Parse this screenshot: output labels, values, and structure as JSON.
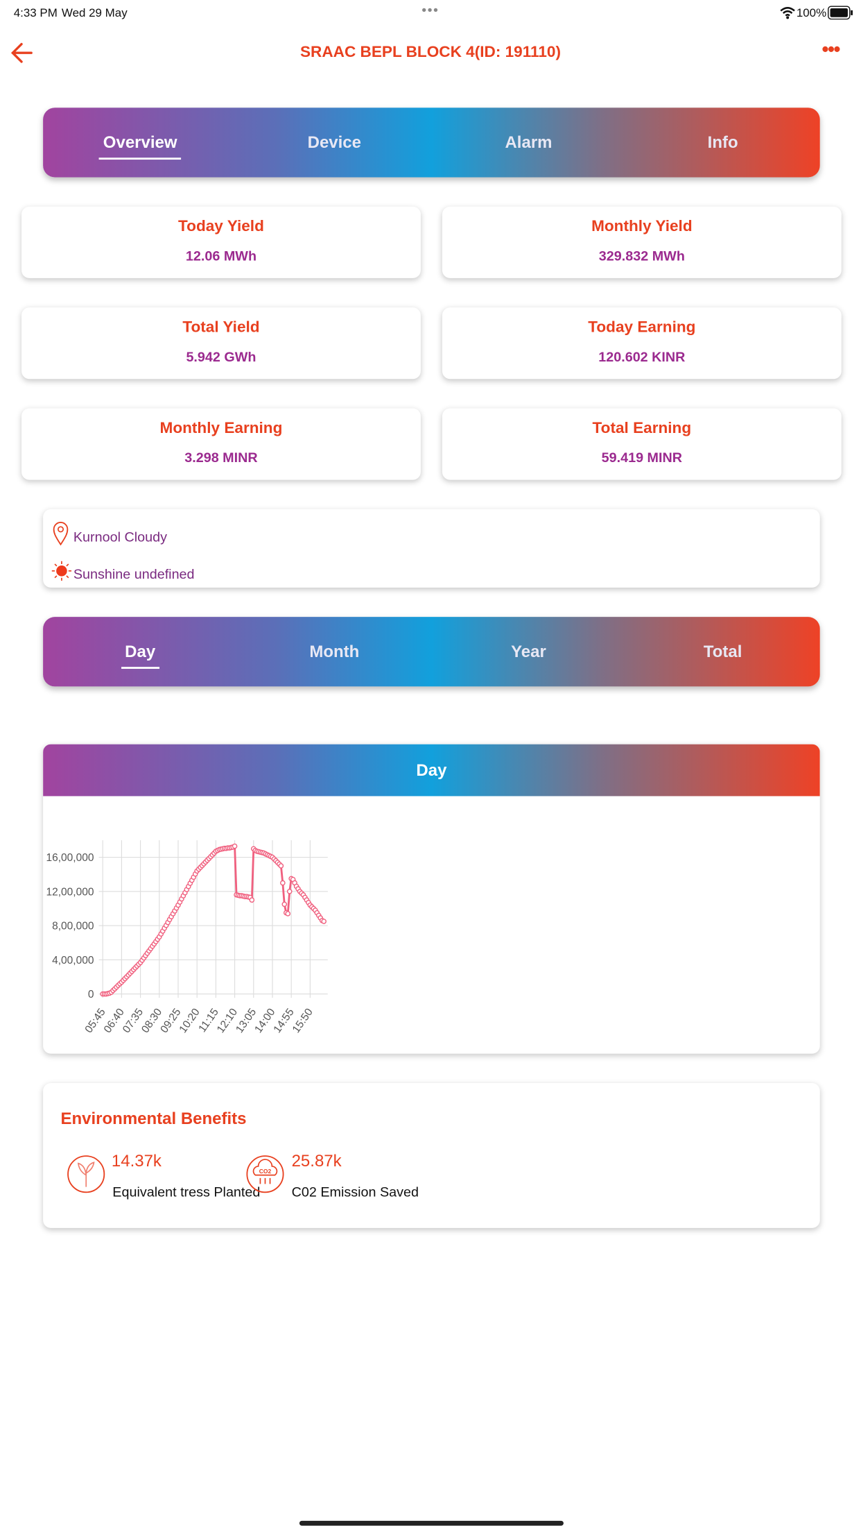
{
  "status_bar": {
    "time": "4:33 PM",
    "date": "Wed 29 May",
    "battery": "100%"
  },
  "header": {
    "title": "SRAAC BEPL BLOCK 4(ID: 191110)"
  },
  "tabs": [
    "Overview",
    "Device",
    "Alarm",
    "Info"
  ],
  "stats": [
    {
      "label": "Today Yield",
      "value": "12.06 MWh"
    },
    {
      "label": "Monthly Yield",
      "value": "329.832 MWh"
    },
    {
      "label": "Total Yield",
      "value": "5.942 GWh"
    },
    {
      "label": "Today Earning",
      "value": "120.602 KINR"
    },
    {
      "label": "Monthly Earning",
      "value": "3.298 MINR"
    },
    {
      "label": "Total Earning",
      "value": "59.419 MINR"
    }
  ],
  "weather": {
    "location": "Kurnool Cloudy",
    "sunshine": "Sunshine undefined"
  },
  "period_tabs": [
    "Day",
    "Month",
    "Year",
    "Total"
  ],
  "chart_card": {
    "title": "Day"
  },
  "chart_data": {
    "type": "line",
    "color": "#f0607f",
    "categories": [
      "05:45",
      null,
      null,
      null,
      null,
      null,
      null,
      null,
      null,
      null,
      null,
      "06:40",
      null,
      null,
      null,
      null,
      null,
      null,
      null,
      null,
      null,
      null,
      "07:35",
      null,
      null,
      null,
      null,
      null,
      null,
      null,
      null,
      null,
      null,
      "08:30",
      null,
      null,
      null,
      null,
      null,
      null,
      null,
      null,
      null,
      null,
      "09:25",
      null,
      null,
      null,
      null,
      null,
      null,
      null,
      null,
      null,
      null,
      "10:20",
      null,
      null,
      null,
      null,
      null,
      null,
      null,
      null,
      null,
      null,
      "11:15",
      null,
      null,
      null,
      null,
      null,
      null,
      null,
      null,
      null,
      null,
      "12:10",
      null,
      null,
      null,
      null,
      null,
      null,
      null,
      null,
      null,
      null,
      "13:05",
      null,
      null,
      null,
      null,
      null,
      null,
      null,
      null,
      null,
      null,
      "14:00",
      null,
      null,
      null,
      null,
      null,
      null,
      null,
      null,
      null,
      null,
      "14:55",
      null,
      null,
      null,
      null,
      null,
      null,
      null,
      null,
      null,
      null,
      "15:50",
      null,
      null,
      null,
      null,
      null,
      null,
      null,
      null
    ],
    "values": [
      0,
      0,
      0,
      5000,
      10000,
      20000,
      40000,
      60000,
      80000,
      100000,
      120000,
      138000,
      159000,
      180000,
      201000,
      222000,
      243000,
      264000,
      285000,
      306000,
      327000,
      348000,
      368000,
      395000,
      422000,
      450000,
      477000,
      504000,
      531000,
      559000,
      586000,
      613000,
      641000,
      668000,
      702000,
      736000,
      770000,
      803000,
      837000,
      871000,
      905000,
      939000,
      972000,
      1006000,
      1040000,
      1076000,
      1113000,
      1149000,
      1185000,
      1222000,
      1258000,
      1295000,
      1331000,
      1367000,
      1404000,
      1440000,
      1461000,
      1482000,
      1503000,
      1524000,
      1545000,
      1566000,
      1586000,
      1607000,
      1628000,
      1649000,
      1670000,
      1680000,
      1690000,
      1695000,
      1700000,
      1705000,
      1705000,
      1710000,
      1710000,
      1715000,
      1720000,
      1730000,
      1160000,
      1155000,
      1150000,
      1150000,
      1145000,
      1140000,
      1140000,
      1135000,
      1130000,
      1100000,
      1700000,
      1680000,
      1670000,
      1665000,
      1660000,
      1655000,
      1650000,
      1640000,
      1630000,
      1620000,
      1610000,
      1600000,
      1580000,
      1560000,
      1540000,
      1520000,
      1500000,
      1300000,
      1050000,
      950000,
      940000,
      1200000,
      1350000,
      1340000,
      1300000,
      1260000,
      1230000,
      1200000,
      1180000,
      1160000,
      1130000,
      1100000,
      1070000,
      1040000,
      1020000,
      1000000,
      980000,
      950000,
      920000,
      890000,
      860000,
      850000
    ],
    "ylim": [
      0,
      1800000
    ],
    "yticks": [
      0,
      {
        "value": 400000,
        "label": "4,00,000"
      },
      {
        "value": 800000,
        "label": "8,00,000"
      },
      {
        "value": 1200000,
        "label": "12,00,000"
      },
      {
        "value": 1600000,
        "label": "16,00,000"
      }
    ],
    "grid": true
  },
  "environment": {
    "title": "Environmental Benefits",
    "items": [
      {
        "value": "14.37k",
        "label": "Equivalent tress Planted"
      },
      {
        "value": "25.87k",
        "label": "C02 Emission Saved"
      }
    ]
  }
}
